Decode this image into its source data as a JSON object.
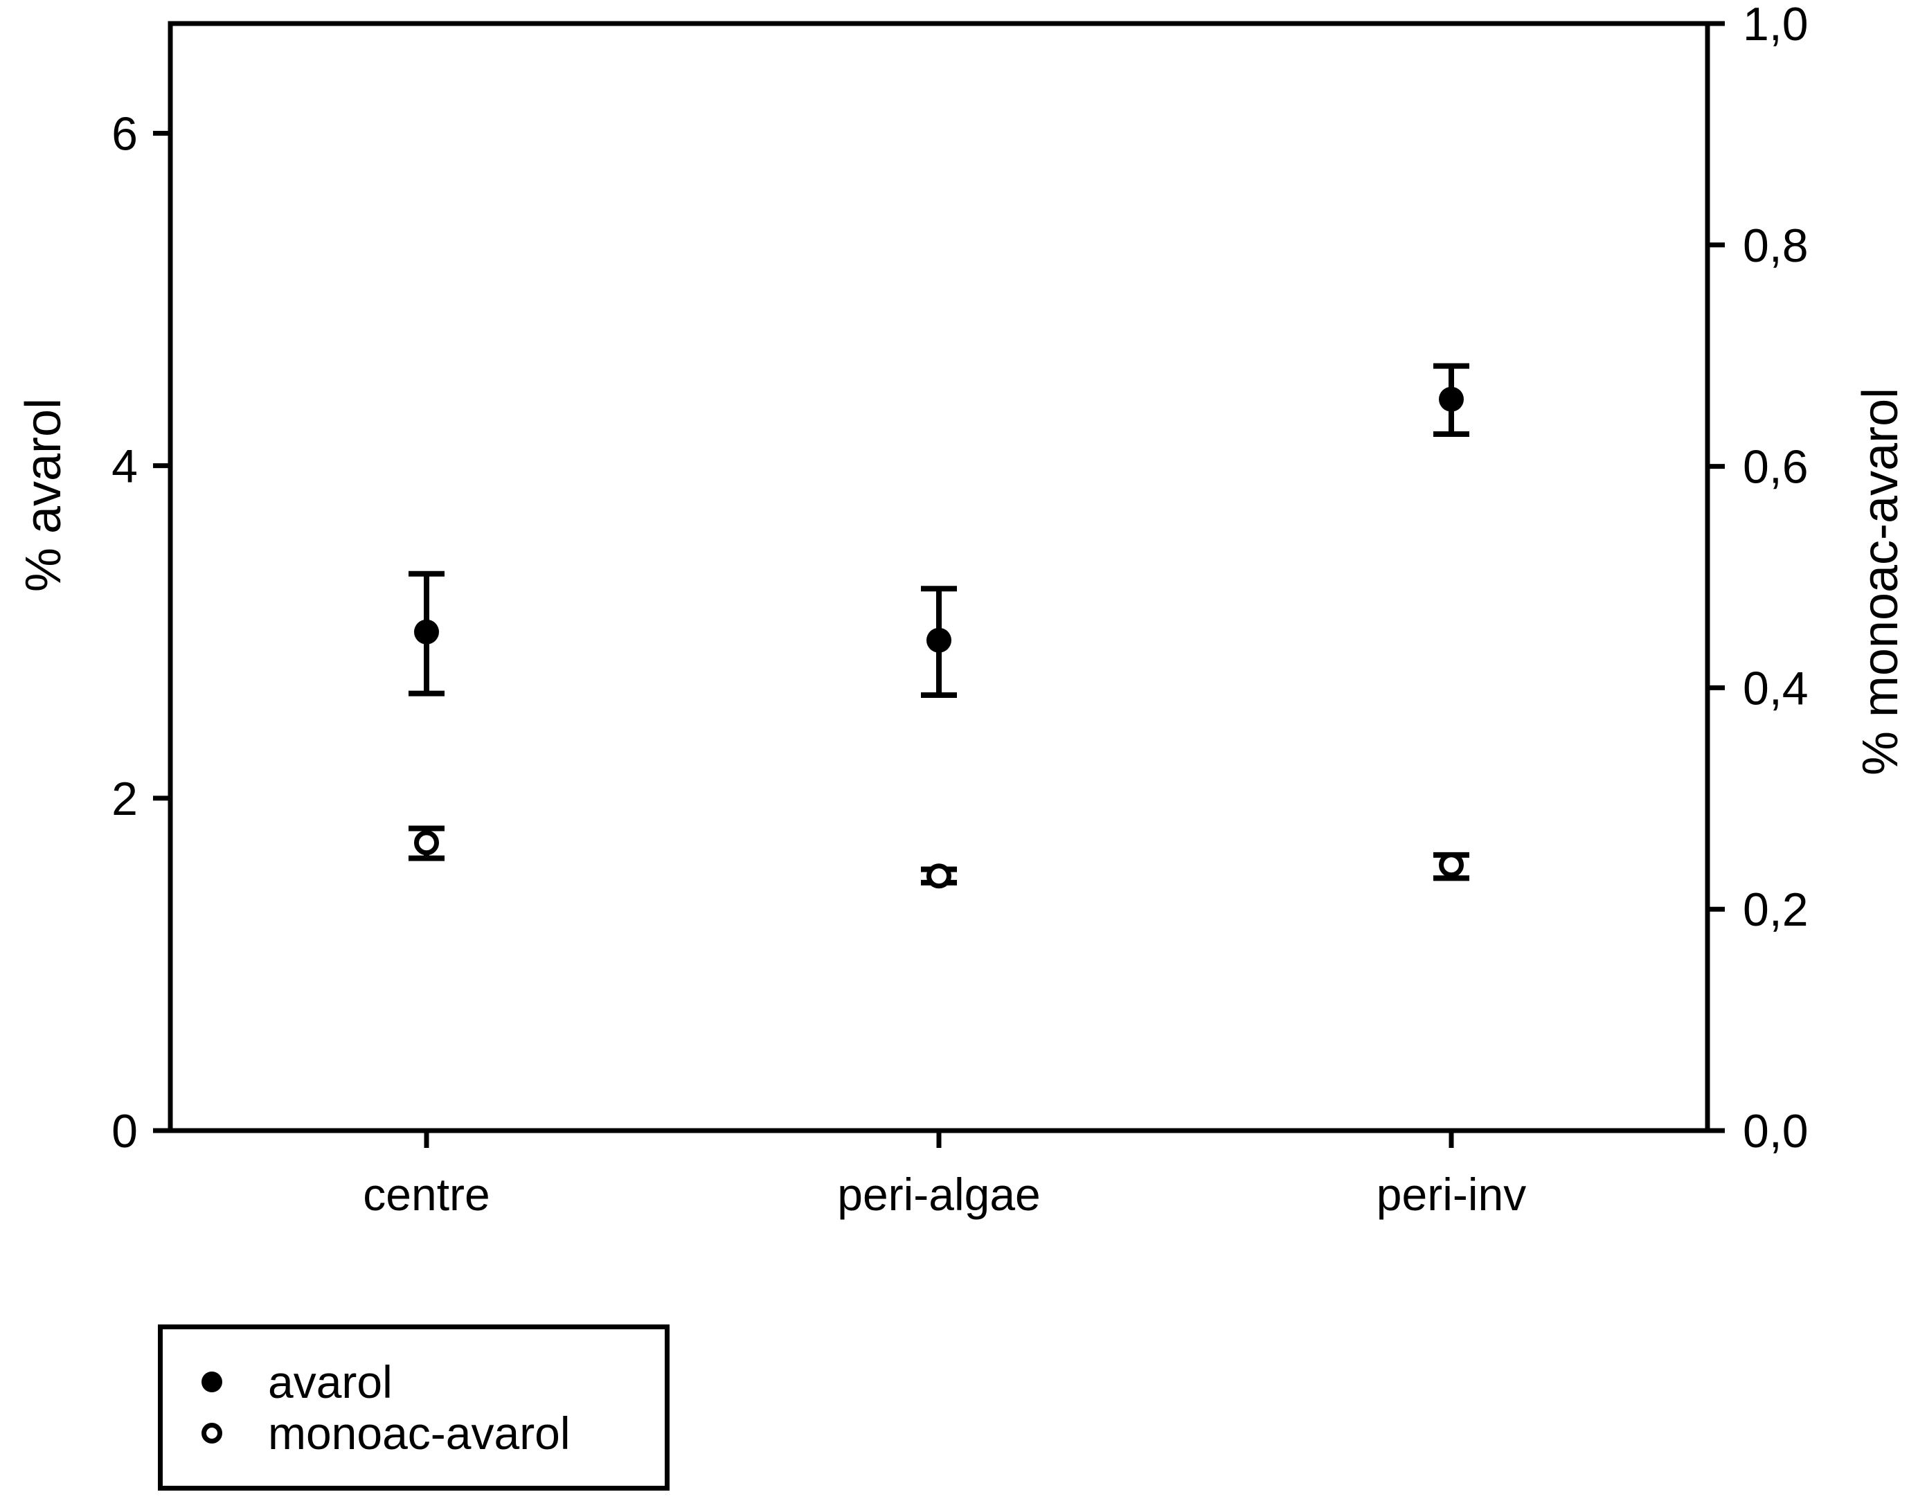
{
  "chart_data": {
    "type": "scatter",
    "title": "",
    "categories": [
      "centre",
      "peri-algae",
      "peri-inv"
    ],
    "series": [
      {
        "name": "avarol",
        "axis": "left",
        "marker": "filled-circle",
        "color": "#000000",
        "values": [
          3.0,
          2.95,
          4.4
        ],
        "error_plus": [
          0.35,
          0.31,
          0.2
        ],
        "error_minus": [
          0.37,
          0.33,
          0.21
        ]
      },
      {
        "name": "monoac-avarol",
        "axis": "right",
        "marker": "open-circle",
        "color": "#000000",
        "values": [
          0.26,
          0.23,
          0.24
        ],
        "error_plus": [
          0.013,
          0.006,
          0.009
        ],
        "error_minus": [
          0.014,
          0.006,
          0.012
        ]
      }
    ],
    "left_axis": {
      "label": "% avarol",
      "tick_labels": [
        "0",
        "2",
        "4",
        "6"
      ],
      "tick_values": [
        0,
        2,
        4,
        6
      ],
      "range": [
        0,
        6.66
      ]
    },
    "right_axis": {
      "label": "% monoac-avarol",
      "tick_labels": [
        "0,0",
        "0,2",
        "0,4",
        "0,6",
        "0,8",
        "1,0"
      ],
      "tick_values": [
        0,
        0.2,
        0.4,
        0.6,
        0.8,
        1.0
      ],
      "range": [
        0,
        1.0
      ]
    },
    "x_axis": {
      "tick_labels": [
        "centre",
        "peri-algae",
        "peri-inv"
      ]
    },
    "legend": {
      "position": "bottom-left",
      "entries": [
        {
          "label": "avarol",
          "marker": "filled-circle"
        },
        {
          "label": "monoac-avarol",
          "marker": "open-circle"
        }
      ]
    },
    "grid": false,
    "background": "#ffffff",
    "foreground": "#000000"
  }
}
